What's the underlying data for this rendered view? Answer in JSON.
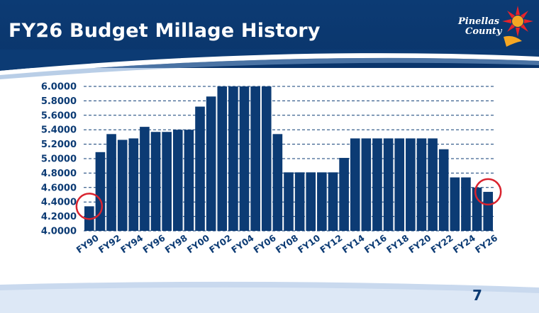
{
  "slide": {
    "title": "FY26 Budget Millage History",
    "logo_text_line1": "Pinellas",
    "logo_text_line2": "County",
    "page_number": "7"
  },
  "colors": {
    "header": "#0c3b74",
    "bar": "#0c3b74",
    "grid": "#0c3b74",
    "highlight_circle": "#d9232e",
    "logo_sun": "#e8232a",
    "logo_wave": "#f5a623"
  },
  "chart_data": {
    "type": "bar",
    "title": "",
    "xlabel": "",
    "ylabel": "",
    "ylim": [
      4.0,
      6.0
    ],
    "yticks": [
      "4.0000",
      "4.2000",
      "4.4000",
      "4.6000",
      "4.8000",
      "5.0000",
      "5.2000",
      "5.4000",
      "5.6000",
      "5.8000",
      "6.0000"
    ],
    "grid": "horizontal dashed",
    "categories": [
      "FY90",
      "FY91",
      "FY92",
      "FY93",
      "FY94",
      "FY95",
      "FY96",
      "FY97",
      "FY98",
      "FY99",
      "FY00",
      "FY01",
      "FY02",
      "FY03",
      "FY04",
      "FY05",
      "FY06",
      "FY07",
      "FY08",
      "FY09",
      "FY10",
      "FY11",
      "FY12",
      "FY13",
      "FY14",
      "FY15",
      "FY16",
      "FY17",
      "FY18",
      "FY19",
      "FY20",
      "FY21",
      "FY22",
      "FY23",
      "FY24",
      "FY25",
      "FY26"
    ],
    "labeled_categories": [
      "FY90",
      "FY92",
      "FY94",
      "FY96",
      "FY98",
      "FY00",
      "FY02",
      "FY04",
      "FY06",
      "FY08",
      "FY10",
      "FY12",
      "FY14",
      "FY16",
      "FY18",
      "FY20",
      "FY22",
      "FY24",
      "FY26"
    ],
    "values": [
      4.34,
      5.09,
      5.34,
      5.26,
      5.28,
      5.44,
      5.37,
      5.37,
      5.4,
      5.4,
      5.72,
      5.86,
      6.0,
      6.0,
      6.0,
      6.0,
      6.0,
      5.34,
      4.81,
      4.81,
      4.81,
      4.81,
      4.81,
      5.01,
      5.28,
      5.28,
      5.28,
      5.28,
      5.28,
      5.28,
      5.28,
      5.28,
      5.13,
      4.74,
      4.74,
      4.6,
      4.54
    ],
    "highlighted_categories": [
      "FY90",
      "FY26"
    ]
  }
}
